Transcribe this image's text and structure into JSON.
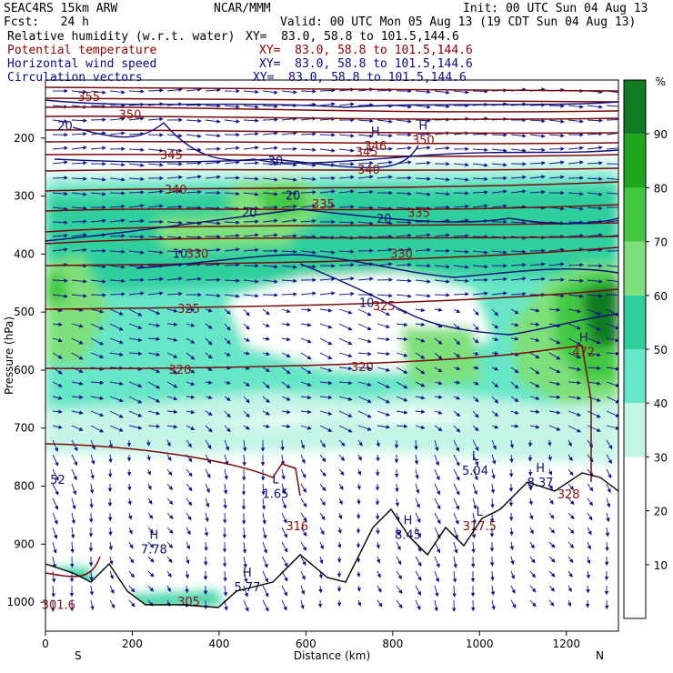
{
  "header": {
    "line1_left": "SEAC4RS 15km ARW",
    "line1_mid": "NCAR/MMM",
    "line1_right": "Init: 00 UTC Sun 04 Aug 13",
    "line2_left": "Fcst:   24 h",
    "line2_right": "Valid: 00 UTC Mon 05 Aug 13 (19 CDT Sun 04 Aug 13)",
    "fields": [
      {
        "name": "Relative humidity (w.r.t. water)",
        "xy": "XY=  83.0, 58.8 to 101.5,144.6",
        "color": "#000000"
      },
      {
        "name": "Potential temperature",
        "xy": "XY=  83.0, 58.8 to 101.5,144.6",
        "color": "#8b0000"
      },
      {
        "name": "Horizontal wind speed",
        "xy": "XY=  83.0, 58.8 to 101.5,144.6",
        "color": "#0a0a80"
      },
      {
        "name": "Circulation vectors",
        "xy": "XY=  83.0, 58.8 to 101.5,144.6",
        "color": "#0a0a80"
      }
    ]
  },
  "chart_data": {
    "type": "heatmap",
    "xlabel": "Distance (km)",
    "ylabel": "Pressure (hPa)",
    "xlim": [
      0,
      1320
    ],
    "ylim": [
      1050,
      100
    ],
    "x_ticks": [
      0,
      200,
      400,
      600,
      800,
      1000,
      1200
    ],
    "y_ticks": [
      200,
      300,
      400,
      500,
      600,
      700,
      800,
      900,
      1000
    ],
    "end_labels": {
      "left": "S",
      "right": "N"
    },
    "colorbar": {
      "unit": "%",
      "levels": [
        10,
        20,
        30,
        40,
        50,
        60,
        70,
        80,
        90
      ],
      "colors": [
        "#ffffff",
        "#ffffff",
        "#ffffff",
        "#c4f5e6",
        "#66e6c7",
        "#2ecf9c",
        "#7ee07a",
        "#43c743",
        "#1ea61e",
        "#117a22"
      ]
    },
    "theta_contours": [
      {
        "label": "355",
        "x": 100,
        "p": 130
      },
      {
        "label": "350",
        "x": 195,
        "p": 160
      },
      {
        "label": "345",
        "x": 290,
        "p": 230
      },
      {
        "label": "340",
        "x": 300,
        "p": 290
      },
      {
        "label": "335",
        "x": 860,
        "p": 330
      },
      {
        "label": "330",
        "x": 350,
        "p": 400
      },
      {
        "label": "325",
        "x": 330,
        "p": 495
      },
      {
        "label": "320",
        "x": 310,
        "p": 600
      },
      {
        "label": "316",
        "x": 580,
        "p": 870
      },
      {
        "label": "305",
        "x": 330,
        "p": 1000
      },
      {
        "label": "335",
        "x": 640,
        "p": 315
      },
      {
        "label": "330",
        "x": 820,
        "p": 400
      },
      {
        "label": "325",
        "x": 780,
        "p": 490
      },
      {
        "label": "320",
        "x": 730,
        "p": 595
      },
      {
        "label": "328",
        "x": 1205,
        "p": 815
      },
      {
        "label": "301.6",
        "x": 30,
        "p": 1005
      },
      {
        "label": "345",
        "x": 740,
        "p": 225
      },
      {
        "label": "340",
        "x": 745,
        "p": 255
      }
    ],
    "wind_contours": [
      {
        "label": "20",
        "x": 45,
        "p": 180
      },
      {
        "label": "30",
        "x": 530,
        "p": 240
      },
      {
        "label": "20",
        "x": 570,
        "p": 300
      },
      {
        "label": "20",
        "x": 470,
        "p": 330
      },
      {
        "label": "20",
        "x": 780,
        "p": 340
      },
      {
        "label": "10",
        "x": 310,
        "p": 400
      },
      {
        "label": "10",
        "x": 740,
        "p": 485
      },
      {
        "label": "52",
        "x": 28,
        "p": 790
      }
    ],
    "extrema": [
      {
        "type": "H",
        "value": "7.78",
        "x": 250,
        "p": 900
      },
      {
        "type": "H",
        "value": "5.77",
        "x": 465,
        "p": 965
      },
      {
        "type": "L",
        "value": "1.65",
        "x": 530,
        "p": 805
      },
      {
        "type": "H",
        "value": "8.45",
        "x": 835,
        "p": 875
      },
      {
        "type": "L",
        "value": "5.04",
        "x": 990,
        "p": 765
      },
      {
        "type": "L",
        "value": "317.5",
        "x": 1000,
        "p": 860
      },
      {
        "type": "H",
        "value": "8.37",
        "x": 1140,
        "p": 785
      },
      {
        "type": "H",
        "value": "472",
        "x": 1240,
        "p": 560
      },
      {
        "type": "H",
        "value": "346",
        "x": 760,
        "p": 205
      },
      {
        "type": "H",
        "value": "350",
        "x": 870,
        "p": 195
      }
    ]
  }
}
